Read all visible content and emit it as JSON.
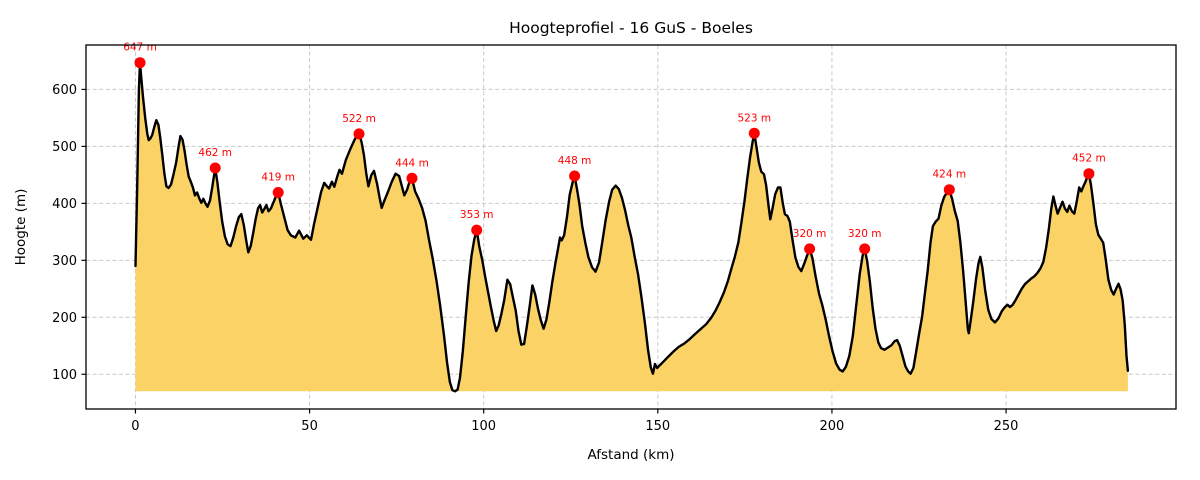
{
  "title": "Hoogteprofiel - 16 GuS - Boeles",
  "chart_data": {
    "type": "area",
    "title": "Hoogteprofiel - 16 GuS - Boeles",
    "xlabel": "Afstand (km)",
    "ylabel": "Hoogte (m)",
    "xlim": [
      -14.2,
      298.8
    ],
    "ylim": [
      39,
      678
    ],
    "xticks": [
      0,
      50,
      100,
      150,
      200,
      250
    ],
    "yticks": [
      100,
      200,
      300,
      400,
      500,
      600
    ],
    "grid": true,
    "legend": "none",
    "baseline": 70,
    "colors": {
      "line": "#000000",
      "fill": "#fbd265",
      "marker": "#ff0000",
      "annotation": "#ff0000",
      "grid": "#c9c9c9",
      "spine": "#000000"
    },
    "peaks": [
      {
        "x": 1.3,
        "y": 647,
        "label": "647 m"
      },
      {
        "x": 22.9,
        "y": 462,
        "label": "462 m"
      },
      {
        "x": 41.0,
        "y": 419,
        "label": "419 m"
      },
      {
        "x": 64.2,
        "y": 522,
        "label": "522 m"
      },
      {
        "x": 79.4,
        "y": 444,
        "label": "444 m"
      },
      {
        "x": 98.0,
        "y": 353,
        "label": "353 m"
      },
      {
        "x": 126.1,
        "y": 448,
        "label": "448 m"
      },
      {
        "x": 177.7,
        "y": 523,
        "label": "523 m"
      },
      {
        "x": 193.6,
        "y": 320,
        "label": "320 m"
      },
      {
        "x": 209.4,
        "y": 320,
        "label": "320 m"
      },
      {
        "x": 233.7,
        "y": 424,
        "label": "424 m"
      },
      {
        "x": 273.8,
        "y": 452,
        "label": "452 m"
      }
    ],
    "profile": [
      [
        0,
        290
      ],
      [
        0.2,
        340
      ],
      [
        0.5,
        430
      ],
      [
        0.8,
        530
      ],
      [
        1.0,
        600
      ],
      [
        1.3,
        647
      ],
      [
        1.7,
        618
      ],
      [
        2.2,
        585
      ],
      [
        2.8,
        550
      ],
      [
        3.4,
        522
      ],
      [
        3.8,
        511
      ],
      [
        4.3,
        514
      ],
      [
        4.8,
        520
      ],
      [
        5.4,
        534
      ],
      [
        6.0,
        546
      ],
      [
        6.6,
        538
      ],
      [
        7.1,
        516
      ],
      [
        7.7,
        485
      ],
      [
        8.3,
        452
      ],
      [
        8.9,
        430
      ],
      [
        9.5,
        427
      ],
      [
        10.2,
        433
      ],
      [
        10.9,
        450
      ],
      [
        11.7,
        472
      ],
      [
        12.4,
        500
      ],
      [
        12.9,
        518
      ],
      [
        13.5,
        512
      ],
      [
        14.1,
        492
      ],
      [
        14.7,
        468
      ],
      [
        15.3,
        447
      ],
      [
        15.9,
        438
      ],
      [
        16.5,
        428
      ],
      [
        17.1,
        414
      ],
      [
        17.7,
        419
      ],
      [
        18.3,
        409
      ],
      [
        18.9,
        401
      ],
      [
        19.5,
        408
      ],
      [
        20.1,
        400
      ],
      [
        20.7,
        394
      ],
      [
        21.4,
        405
      ],
      [
        22.1,
        430
      ],
      [
        22.9,
        462
      ],
      [
        23.5,
        438
      ],
      [
        24.2,
        402
      ],
      [
        24.9,
        368
      ],
      [
        25.7,
        342
      ],
      [
        26.5,
        328
      ],
      [
        27.3,
        325
      ],
      [
        28.1,
        340
      ],
      [
        28.9,
        360
      ],
      [
        29.7,
        376
      ],
      [
        30.4,
        381
      ],
      [
        31.1,
        362
      ],
      [
        31.8,
        335
      ],
      [
        32.4,
        314
      ],
      [
        33.1,
        325
      ],
      [
        33.8,
        348
      ],
      [
        34.5,
        372
      ],
      [
        35.2,
        391
      ],
      [
        35.8,
        397
      ],
      [
        36.4,
        384
      ],
      [
        37.0,
        390
      ],
      [
        37.6,
        397
      ],
      [
        38.2,
        386
      ],
      [
        38.9,
        391
      ],
      [
        39.5,
        400
      ],
      [
        40.2,
        410
      ],
      [
        41.0,
        419
      ],
      [
        41.8,
        398
      ],
      [
        42.7,
        376
      ],
      [
        43.7,
        353
      ],
      [
        44.6,
        344
      ],
      [
        45.9,
        340
      ],
      [
        47.0,
        352
      ],
      [
        48.2,
        338
      ],
      [
        49.2,
        344
      ],
      [
        50.4,
        336
      ],
      [
        51.3,
        364
      ],
      [
        52.3,
        392
      ],
      [
        53.3,
        420
      ],
      [
        54.2,
        436
      ],
      [
        55.0,
        430
      ],
      [
        55.6,
        426
      ],
      [
        56.4,
        438
      ],
      [
        57.1,
        429
      ],
      [
        58.0,
        448
      ],
      [
        58.6,
        459
      ],
      [
        59.3,
        452
      ],
      [
        60.4,
        476
      ],
      [
        61.6,
        494
      ],
      [
        62.8,
        510
      ],
      [
        63.6,
        519
      ],
      [
        64.2,
        522
      ],
      [
        64.9,
        508
      ],
      [
        65.6,
        485
      ],
      [
        66.3,
        452
      ],
      [
        66.9,
        430
      ],
      [
        67.7,
        449
      ],
      [
        68.5,
        457
      ],
      [
        69.4,
        434
      ],
      [
        70.1,
        410
      ],
      [
        70.7,
        392
      ],
      [
        71.5,
        405
      ],
      [
        72.5,
        420
      ],
      [
        73.6,
        438
      ],
      [
        74.7,
        452
      ],
      [
        75.7,
        448
      ],
      [
        76.5,
        430
      ],
      [
        77.2,
        414
      ],
      [
        78.0,
        424
      ],
      [
        78.7,
        438
      ],
      [
        79.4,
        444
      ],
      [
        80.3,
        421
      ],
      [
        81.3,
        408
      ],
      [
        82.3,
        392
      ],
      [
        83.3,
        370
      ],
      [
        84.3,
        336
      ],
      [
        85.4,
        302
      ],
      [
        86.5,
        262
      ],
      [
        87.5,
        220
      ],
      [
        88.6,
        168
      ],
      [
        89.5,
        120
      ],
      [
        90.3,
        86
      ],
      [
        91.0,
        72
      ],
      [
        91.8,
        70
      ],
      [
        92.5,
        73
      ],
      [
        93.2,
        94
      ],
      [
        94.0,
        140
      ],
      [
        94.9,
        205
      ],
      [
        95.7,
        262
      ],
      [
        96.5,
        308
      ],
      [
        97.3,
        337
      ],
      [
        98.0,
        353
      ],
      [
        98.7,
        325
      ],
      [
        99.6,
        300
      ],
      [
        100.4,
        272
      ],
      [
        101.2,
        246
      ],
      [
        102.0,
        220
      ],
      [
        102.9,
        193
      ],
      [
        103.6,
        176
      ],
      [
        104.3,
        186
      ],
      [
        105.1,
        207
      ],
      [
        105.9,
        230
      ],
      [
        106.8,
        266
      ],
      [
        107.6,
        258
      ],
      [
        108.4,
        235
      ],
      [
        109.2,
        212
      ],
      [
        110.0,
        176
      ],
      [
        110.8,
        152
      ],
      [
        111.6,
        153
      ],
      [
        112.4,
        185
      ],
      [
        113.2,
        220
      ],
      [
        114.0,
        256
      ],
      [
        114.8,
        240
      ],
      [
        115.6,
        215
      ],
      [
        116.4,
        195
      ],
      [
        117.2,
        180
      ],
      [
        118.0,
        196
      ],
      [
        118.8,
        225
      ],
      [
        119.7,
        262
      ],
      [
        120.6,
        295
      ],
      [
        121.4,
        322
      ],
      [
        121.9,
        340
      ],
      [
        122.4,
        335
      ],
      [
        123.1,
        344
      ],
      [
        123.9,
        375
      ],
      [
        124.7,
        415
      ],
      [
        125.5,
        436
      ],
      [
        126.1,
        448
      ],
      [
        126.8,
        425
      ],
      [
        127.5,
        398
      ],
      [
        128.3,
        360
      ],
      [
        129.2,
        330
      ],
      [
        130.1,
        305
      ],
      [
        131.1,
        288
      ],
      [
        132.1,
        280
      ],
      [
        133.1,
        296
      ],
      [
        134.0,
        330
      ],
      [
        135.0,
        370
      ],
      [
        136.0,
        403
      ],
      [
        136.9,
        424
      ],
      [
        137.9,
        431
      ],
      [
        138.8,
        425
      ],
      [
        139.7,
        410
      ],
      [
        140.6,
        388
      ],
      [
        141.5,
        362
      ],
      [
        142.4,
        340
      ],
      [
        143.3,
        308
      ],
      [
        144.3,
        276
      ],
      [
        145.3,
        236
      ],
      [
        146.3,
        190
      ],
      [
        147.2,
        142
      ],
      [
        148.0,
        112
      ],
      [
        148.6,
        101
      ],
      [
        149.2,
        118
      ],
      [
        149.8,
        111
      ],
      [
        150.6,
        116
      ],
      [
        151.6,
        122
      ],
      [
        153.0,
        131
      ],
      [
        154.5,
        140
      ],
      [
        156.0,
        148
      ],
      [
        157.6,
        154
      ],
      [
        159.2,
        162
      ],
      [
        160.8,
        171
      ],
      [
        162.4,
        180
      ],
      [
        163.9,
        188
      ],
      [
        165.3,
        199
      ],
      [
        166.6,
        212
      ],
      [
        167.8,
        227
      ],
      [
        169.0,
        244
      ],
      [
        170.1,
        263
      ],
      [
        171.1,
        285
      ],
      [
        172.1,
        306
      ],
      [
        173.1,
        331
      ],
      [
        174.0,
        366
      ],
      [
        174.9,
        404
      ],
      [
        175.7,
        444
      ],
      [
        176.5,
        481
      ],
      [
        177.2,
        507
      ],
      [
        177.7,
        523
      ],
      [
        178.3,
        500
      ],
      [
        179.0,
        472
      ],
      [
        179.7,
        456
      ],
      [
        180.5,
        451
      ],
      [
        181.1,
        432
      ],
      [
        181.8,
        395
      ],
      [
        182.3,
        372
      ],
      [
        182.9,
        390
      ],
      [
        183.7,
        416
      ],
      [
        184.5,
        428
      ],
      [
        185.2,
        428
      ],
      [
        185.9,
        400
      ],
      [
        186.5,
        381
      ],
      [
        187.2,
        378
      ],
      [
        187.9,
        368
      ],
      [
        188.7,
        335
      ],
      [
        189.5,
        305
      ],
      [
        190.4,
        288
      ],
      [
        191.2,
        281
      ],
      [
        192.1,
        295
      ],
      [
        192.9,
        309
      ],
      [
        193.6,
        320
      ],
      [
        194.4,
        304
      ],
      [
        195.3,
        272
      ],
      [
        196.3,
        241
      ],
      [
        197.2,
        222
      ],
      [
        198.2,
        196
      ],
      [
        199.2,
        166
      ],
      [
        200.2,
        140
      ],
      [
        201.2,
        119
      ],
      [
        202.2,
        108
      ],
      [
        203.1,
        105
      ],
      [
        204.0,
        113
      ],
      [
        205.0,
        132
      ],
      [
        206.0,
        167
      ],
      [
        207.0,
        222
      ],
      [
        208.0,
        277
      ],
      [
        208.8,
        308
      ],
      [
        209.4,
        320
      ],
      [
        210.1,
        299
      ],
      [
        210.9,
        262
      ],
      [
        211.7,
        216
      ],
      [
        212.5,
        180
      ],
      [
        213.3,
        156
      ],
      [
        214.1,
        146
      ],
      [
        215.1,
        143
      ],
      [
        216.1,
        147
      ],
      [
        217.1,
        151
      ],
      [
        218.0,
        158
      ],
      [
        218.7,
        160
      ],
      [
        219.5,
        150
      ],
      [
        220.3,
        132
      ],
      [
        221.1,
        114
      ],
      [
        221.9,
        105
      ],
      [
        222.6,
        101
      ],
      [
        223.4,
        111
      ],
      [
        224.2,
        140
      ],
      [
        225.0,
        170
      ],
      [
        225.9,
        201
      ],
      [
        226.7,
        242
      ],
      [
        227.5,
        282
      ],
      [
        228.3,
        331
      ],
      [
        229.0,
        360
      ],
      [
        229.8,
        368
      ],
      [
        230.6,
        373
      ],
      [
        231.4,
        396
      ],
      [
        232.2,
        411
      ],
      [
        233.0,
        419
      ],
      [
        233.7,
        424
      ],
      [
        234.5,
        408
      ],
      [
        235.3,
        386
      ],
      [
        236.1,
        369
      ],
      [
        236.9,
        331
      ],
      [
        237.7,
        280
      ],
      [
        238.4,
        226
      ],
      [
        239.0,
        180
      ],
      [
        239.3,
        172
      ],
      [
        239.8,
        192
      ],
      [
        240.6,
        228
      ],
      [
        241.4,
        268
      ],
      [
        242.1,
        295
      ],
      [
        242.6,
        306
      ],
      [
        243.2,
        287
      ],
      [
        244.0,
        247
      ],
      [
        244.9,
        213
      ],
      [
        245.8,
        197
      ],
      [
        246.8,
        191
      ],
      [
        247.8,
        198
      ],
      [
        248.8,
        211
      ],
      [
        249.7,
        218
      ],
      [
        250.4,
        222
      ],
      [
        251.1,
        218
      ],
      [
        251.9,
        222
      ],
      [
        252.7,
        230
      ],
      [
        253.6,
        240
      ],
      [
        254.5,
        250
      ],
      [
        255.4,
        258
      ],
      [
        256.3,
        263
      ],
      [
        257.2,
        268
      ],
      [
        258.1,
        272
      ],
      [
        259.0,
        278
      ],
      [
        259.9,
        286
      ],
      [
        260.7,
        297
      ],
      [
        261.5,
        322
      ],
      [
        262.3,
        356
      ],
      [
        263.0,
        391
      ],
      [
        263.6,
        412
      ],
      [
        264.2,
        396
      ],
      [
        264.8,
        382
      ],
      [
        265.5,
        392
      ],
      [
        266.2,
        403
      ],
      [
        266.9,
        391
      ],
      [
        267.6,
        385
      ],
      [
        268.2,
        396
      ],
      [
        268.9,
        386
      ],
      [
        269.6,
        382
      ],
      [
        270.3,
        404
      ],
      [
        271.0,
        428
      ],
      [
        271.6,
        421
      ],
      [
        272.2,
        430
      ],
      [
        272.8,
        438
      ],
      [
        273.3,
        446
      ],
      [
        273.8,
        452
      ],
      [
        274.4,
        432
      ],
      [
        275.1,
        398
      ],
      [
        275.8,
        363
      ],
      [
        276.5,
        345
      ],
      [
        277.2,
        338
      ],
      [
        277.9,
        331
      ],
      [
        278.6,
        302
      ],
      [
        279.4,
        266
      ],
      [
        280.2,
        248
      ],
      [
        280.9,
        240
      ],
      [
        281.6,
        250
      ],
      [
        282.3,
        259
      ],
      [
        282.9,
        249
      ],
      [
        283.5,
        229
      ],
      [
        284.1,
        186
      ],
      [
        284.6,
        132
      ],
      [
        285.0,
        106
      ]
    ]
  }
}
